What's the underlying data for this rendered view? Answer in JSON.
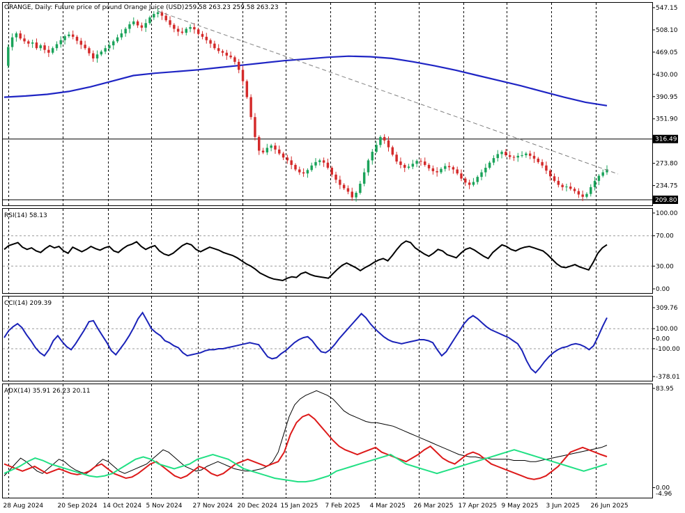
{
  "chart_data": [
    {
      "type": "candlestick",
      "title": "ORANGE, Daily:  Future price of pound Orange Juice (USD)",
      "ohlc": "259.58 263.23 259.58 263.23",
      "y_ticks": [
        547.15,
        508.1,
        469.05,
        430.0,
        390.95,
        351.9,
        273.8,
        234.75
      ],
      "ylim": [
        209.8,
        547.15
      ],
      "levels": [
        316.49,
        209.8
      ],
      "level_color": "#000000",
      "candle_up_color": "#1aa35a",
      "candle_down_color": "#d42a2a",
      "ma_color": "#1f25c4",
      "ma_values": [
        390,
        392,
        395,
        400,
        408,
        418,
        428,
        432,
        435,
        438,
        442,
        446,
        450,
        454,
        457,
        460,
        462,
        461,
        458,
        452,
        445,
        437,
        428,
        419,
        410,
        400,
        390,
        381,
        375
      ],
      "trendline": {
        "from_close": 541,
        "to_close": 255,
        "color": "#808080"
      },
      "closes": [
        445,
        478,
        495,
        502,
        493,
        488,
        484,
        486,
        476,
        481,
        473,
        468,
        476,
        483,
        490,
        497,
        500,
        496,
        489,
        482,
        476,
        467,
        458,
        465,
        470,
        476,
        481,
        488,
        495,
        502,
        510,
        518,
        523,
        516,
        512,
        520,
        530,
        536,
        539,
        533,
        525,
        517,
        510,
        505,
        503,
        510,
        513,
        509,
        501,
        496,
        490,
        484,
        476,
        471,
        468,
        463,
        460,
        452,
        438,
        418,
        390,
        355,
        320,
        296,
        293,
        301,
        305,
        298,
        291,
        284,
        279,
        271,
        263,
        258,
        256,
        262,
        270,
        276,
        279,
        275,
        266,
        254,
        245,
        236,
        230,
        224,
        214,
        222,
        238,
        258,
        279,
        294,
        306,
        320,
        314,
        302,
        289,
        277,
        271,
        266,
        268,
        273,
        278,
        277,
        271,
        265,
        260,
        258,
        264,
        269,
        267,
        263,
        256,
        247,
        240,
        236,
        241,
        250,
        258,
        266,
        275,
        283,
        290,
        294,
        288,
        285,
        284,
        287,
        288,
        291,
        287,
        282,
        276,
        270,
        261,
        251,
        243,
        236,
        232,
        233,
        229,
        225,
        219,
        215,
        220,
        232,
        243,
        252,
        258,
        263.23
      ]
    },
    {
      "type": "line",
      "title": "RSI(14) 58.13",
      "y_ticks": [
        100.0,
        70.0,
        30.0,
        0.0
      ],
      "ylim": [
        0,
        100
      ],
      "color": "#000000",
      "values": [
        52,
        57,
        59,
        61,
        55,
        52,
        54,
        50,
        48,
        53,
        57,
        54,
        56,
        50,
        47,
        55,
        52,
        49,
        52,
        56,
        53,
        51,
        54,
        56,
        50,
        48,
        53,
        57,
        59,
        62,
        56,
        52,
        55,
        57,
        50,
        46,
        44,
        47,
        52,
        57,
        60,
        58,
        52,
        49,
        52,
        55,
        53,
        51,
        48,
        46,
        44,
        41,
        37,
        33,
        30,
        26,
        21,
        18,
        15,
        13,
        12,
        11,
        14,
        16,
        15,
        20,
        22,
        19,
        17,
        16,
        15,
        14,
        20,
        26,
        31,
        34,
        31,
        28,
        24,
        28,
        31,
        35,
        38,
        40,
        37,
        44,
        52,
        59,
        63,
        61,
        54,
        50,
        46,
        43,
        47,
        52,
        50,
        45,
        43,
        41,
        47,
        52,
        54,
        51,
        47,
        43,
        40,
        48,
        53,
        58,
        56,
        52,
        50,
        53,
        55,
        56,
        54,
        52,
        50,
        45,
        39,
        33,
        29,
        28,
        30,
        32,
        29,
        27,
        25,
        35,
        47,
        54,
        58.13
      ]
    },
    {
      "type": "line",
      "title": "CCI(14) 209.39",
      "y_ticks": [
        309.76,
        100.0,
        0.0,
        -100.0,
        -378.01
      ],
      "ylim": [
        -378.01,
        309.76
      ],
      "color": "#1a22b8",
      "values": [
        10,
        80,
        120,
        150,
        110,
        40,
        -20,
        -90,
        -140,
        -170,
        -110,
        -20,
        30,
        -30,
        -80,
        -110,
        -50,
        20,
        90,
        170,
        180,
        100,
        30,
        -40,
        -120,
        -160,
        -100,
        -40,
        30,
        110,
        200,
        260,
        180,
        100,
        60,
        30,
        -20,
        -40,
        -70,
        -90,
        -140,
        -170,
        -160,
        -150,
        -140,
        -120,
        -110,
        -110,
        -100,
        -100,
        -90,
        -80,
        -70,
        -60,
        -50,
        -40,
        -50,
        -60,
        -120,
        -180,
        -200,
        -190,
        -150,
        -120,
        -80,
        -40,
        -10,
        10,
        20,
        -20,
        -80,
        -130,
        -140,
        -110,
        -60,
        0,
        50,
        100,
        150,
        200,
        250,
        210,
        150,
        100,
        60,
        20,
        -10,
        -30,
        -40,
        -50,
        -40,
        -30,
        -20,
        -10,
        -10,
        -20,
        -40,
        -110,
        -170,
        -130,
        -60,
        10,
        80,
        150,
        200,
        230,
        200,
        160,
        120,
        90,
        70,
        50,
        30,
        10,
        -20,
        -50,
        -120,
        -220,
        -300,
        -340,
        -290,
        -230,
        -180,
        -140,
        -110,
        -90,
        -80,
        -60,
        -50,
        -60,
        -80,
        -110,
        -70,
        20,
        120,
        209.39
      ]
    },
    {
      "type": "line",
      "title": "ADX(14) 35.91 26.23 20.11",
      "y_ticks": [
        83.95,
        0.0
      ],
      "y_tick_extra": "-4.96",
      "ylim": [
        -4.96,
        83.95
      ],
      "series": [
        {
          "color": "#000000",
          "values": [
            10,
            15,
            20,
            25,
            22,
            18,
            14,
            12,
            16,
            20,
            24,
            22,
            18,
            15,
            13,
            12,
            15,
            20,
            24,
            22,
            18,
            14,
            12,
            14,
            16,
            18,
            20,
            24,
            28,
            32,
            30,
            26,
            22,
            18,
            16,
            14,
            15,
            18,
            20,
            22,
            20,
            18,
            16,
            15,
            14,
            14,
            15,
            16,
            18,
            22,
            30,
            45,
            60,
            70,
            75,
            78,
            80,
            82,
            80,
            78,
            75,
            70,
            65,
            62,
            60,
            58,
            56,
            55,
            55,
            54,
            53,
            52,
            50,
            48,
            46,
            44,
            42,
            40,
            38,
            36,
            34,
            32,
            30,
            28,
            27,
            26,
            26,
            25,
            25,
            24,
            24,
            24,
            24,
            23,
            23,
            23,
            22,
            22,
            23,
            24,
            25,
            26,
            27,
            28,
            29,
            30,
            31,
            32,
            33,
            34,
            35.91
          ]
        },
        {
          "color": "#dd1a1a",
          "values": [
            20,
            18,
            16,
            14,
            16,
            18,
            15,
            12,
            14,
            16,
            14,
            12,
            11,
            12,
            14,
            18,
            20,
            16,
            12,
            10,
            8,
            9,
            12,
            16,
            20,
            22,
            18,
            14,
            10,
            8,
            10,
            14,
            18,
            16,
            12,
            10,
            12,
            16,
            20,
            22,
            24,
            22,
            20,
            18,
            20,
            22,
            30,
            45,
            55,
            60,
            62,
            58,
            52,
            46,
            40,
            35,
            32,
            30,
            28,
            30,
            32,
            34,
            30,
            28,
            26,
            24,
            22,
            25,
            28,
            32,
            35,
            30,
            25,
            22,
            20,
            24,
            28,
            30,
            28,
            24,
            20,
            18,
            16,
            14,
            12,
            10,
            8,
            7,
            8,
            10,
            14,
            18,
            24,
            30,
            32,
            34,
            32,
            30,
            28,
            26.23
          ]
        },
        {
          "color": "#21e084",
          "values": [
            12,
            15,
            18,
            22,
            25,
            23,
            20,
            18,
            16,
            14,
            12,
            10,
            9,
            10,
            12,
            16,
            20,
            24,
            26,
            24,
            20,
            18,
            16,
            18,
            20,
            24,
            26,
            28,
            26,
            24,
            20,
            16,
            14,
            12,
            10,
            8,
            7,
            6,
            5,
            5,
            6,
            8,
            10,
            14,
            16,
            18,
            20,
            22,
            24,
            26,
            28,
            24,
            20,
            18,
            16,
            14,
            12,
            14,
            16,
            18,
            20,
            22,
            24,
            26,
            28,
            30,
            32,
            30,
            28,
            26,
            24,
            22,
            20,
            18,
            16,
            14,
            16,
            18,
            20.11
          ]
        }
      ]
    }
  ],
  "x_axis_labels": [
    "28 Aug 2024",
    "20 Sep 2024",
    "14 Oct 2024",
    "5 Nov 2024",
    "27 Nov 2024",
    "20 Dec 2024",
    "15 Jan 2025",
    "7 Feb 2025",
    "4 Mar 2025",
    "26 Mar 2025",
    "17 Apr 2025",
    "9 May 2025",
    "3 Jun 2025",
    "26 Jun 2025"
  ],
  "colors": {
    "background": "#ffffff",
    "frame": "#000000"
  }
}
